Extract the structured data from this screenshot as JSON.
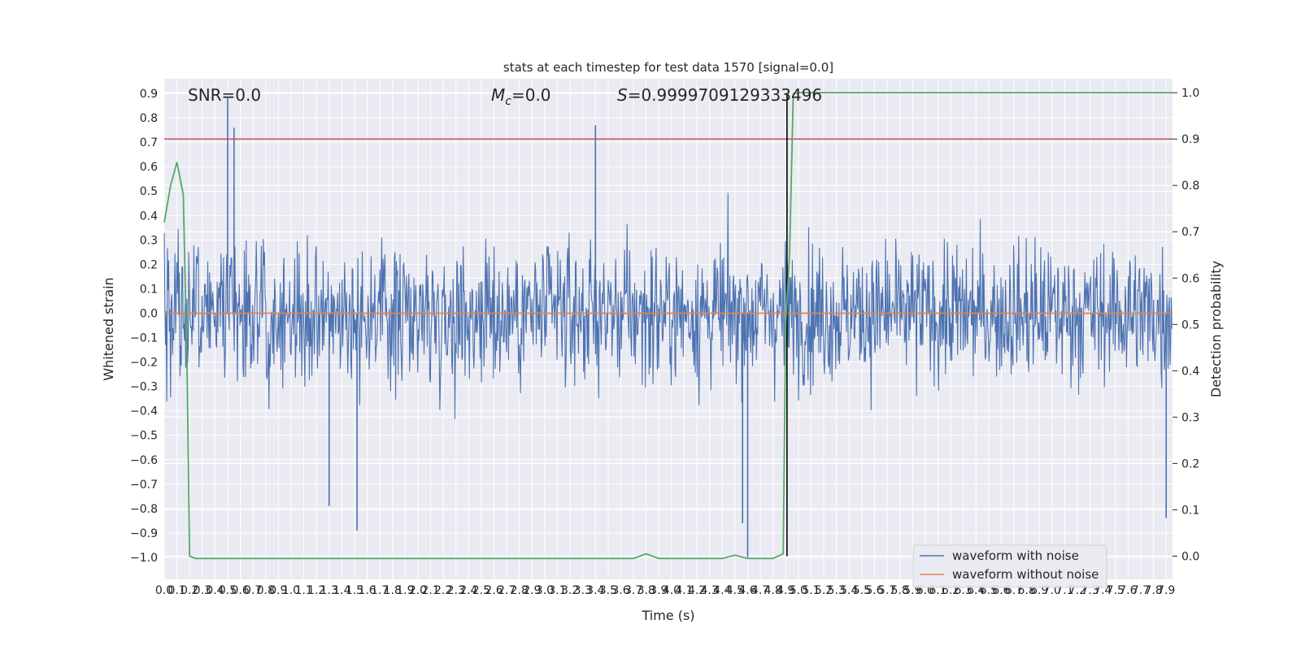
{
  "chart_data": {
    "type": "line",
    "title": "stats at each timestep for test data 1570 [signal=0.0]",
    "xlabel": "Time (s)",
    "ylabel": "Whitened strain",
    "y2label": "Detection probability",
    "xlim": [
      0.0,
      7.95
    ],
    "ylim": [
      -1.09,
      0.96
    ],
    "y2lim": [
      -0.05,
      1.03
    ],
    "grid": true,
    "x_ticks": [
      "0.0",
      "0.1",
      "0.2",
      "0.3",
      "0.4",
      "0.5",
      "0.6",
      "0.7",
      "0.8",
      "0.9",
      "1.0",
      "1.1",
      "1.2",
      "1.3",
      "1.4",
      "1.5",
      "1.6",
      "1.7",
      "1.8",
      "1.9",
      "2.0",
      "2.1",
      "2.2",
      "2.3",
      "2.4",
      "2.5",
      "2.6",
      "2.7",
      "2.8",
      "2.9",
      "3.0",
      "3.1",
      "3.2",
      "3.3",
      "3.4",
      "3.5",
      "3.6",
      "3.7",
      "3.8",
      "3.9",
      "4.0",
      "4.1",
      "4.2",
      "4.3",
      "4.4",
      "4.5",
      "4.6",
      "4.7",
      "4.8",
      "4.9",
      "5.0",
      "5.1",
      "5.2",
      "5.3",
      "5.4",
      "5.5",
      "5.6",
      "5.7",
      "5.8",
      "5.9",
      "6.0",
      "6.1",
      "6.2",
      "6.3",
      "6.4",
      "6.5",
      "6.6",
      "6.7",
      "6.8",
      "6.9",
      "7.0",
      "7.1",
      "7.2",
      "7.3",
      "7.4",
      "7.5",
      "7.6",
      "7.7",
      "7.8",
      "7.9"
    ],
    "y_ticks": [
      "0.9",
      "0.8",
      "0.7",
      "0.6",
      "0.5",
      "0.4",
      "0.3",
      "0.2",
      "0.1",
      "0.0",
      "−0.1",
      "−0.2",
      "−0.3",
      "−0.4",
      "−0.5",
      "−0.6",
      "−0.7",
      "−0.8",
      "−0.9",
      "−1.0"
    ],
    "y2_ticks": [
      "1.0",
      "0.9",
      "0.8",
      "0.7",
      "0.6",
      "0.5",
      "0.4",
      "0.3",
      "0.2",
      "0.1",
      "0.0"
    ],
    "annotations": {
      "snr": "SNR=0.0",
      "mc_symbol": "M",
      "mc_sub": "c",
      "mc_value": "=0.0",
      "s_symbol": "S",
      "s_value": "=0.9999709129333496"
    },
    "threshold_y2": 0.9,
    "marker_x": 4.91,
    "noise_seed": 1570,
    "noise_samples": 1600,
    "series": [
      {
        "name": "waveform with noise",
        "color": "#4c72b0",
        "kind": "noise",
        "spikes": [
          [
            0.5,
            0.88
          ],
          [
            0.55,
            0.76
          ],
          [
            3.4,
            0.77
          ],
          [
            4.6,
            -1.0
          ],
          [
            4.56,
            -0.86
          ],
          [
            1.52,
            -0.89
          ],
          [
            1.3,
            -0.79
          ],
          [
            7.9,
            -0.84
          ]
        ]
      },
      {
        "name": "waveform without noise",
        "color": "#dd8452",
        "kind": "constant",
        "value": 0.0
      },
      {
        "name": "",
        "color": "#55a868",
        "axis": "right",
        "x": [
          0.0,
          0.05,
          0.1,
          0.15,
          0.18,
          0.2,
          0.25,
          0.3,
          1.0,
          2.0,
          3.0,
          3.7,
          3.8,
          3.9,
          4.0,
          4.4,
          4.5,
          4.6,
          4.8,
          4.88,
          4.9,
          4.93,
          4.96,
          5.0,
          6.0,
          7.0,
          7.95
        ],
        "y": [
          0.72,
          0.8,
          0.85,
          0.78,
          0.4,
          0.0,
          -0.005,
          -0.005,
          -0.005,
          -0.005,
          -0.005,
          -0.005,
          0.005,
          -0.005,
          -0.005,
          -0.005,
          0.002,
          -0.005,
          -0.005,
          0.005,
          0.5,
          0.65,
          0.998,
          1.0,
          1.0,
          1.0,
          1.0
        ]
      }
    ]
  }
}
